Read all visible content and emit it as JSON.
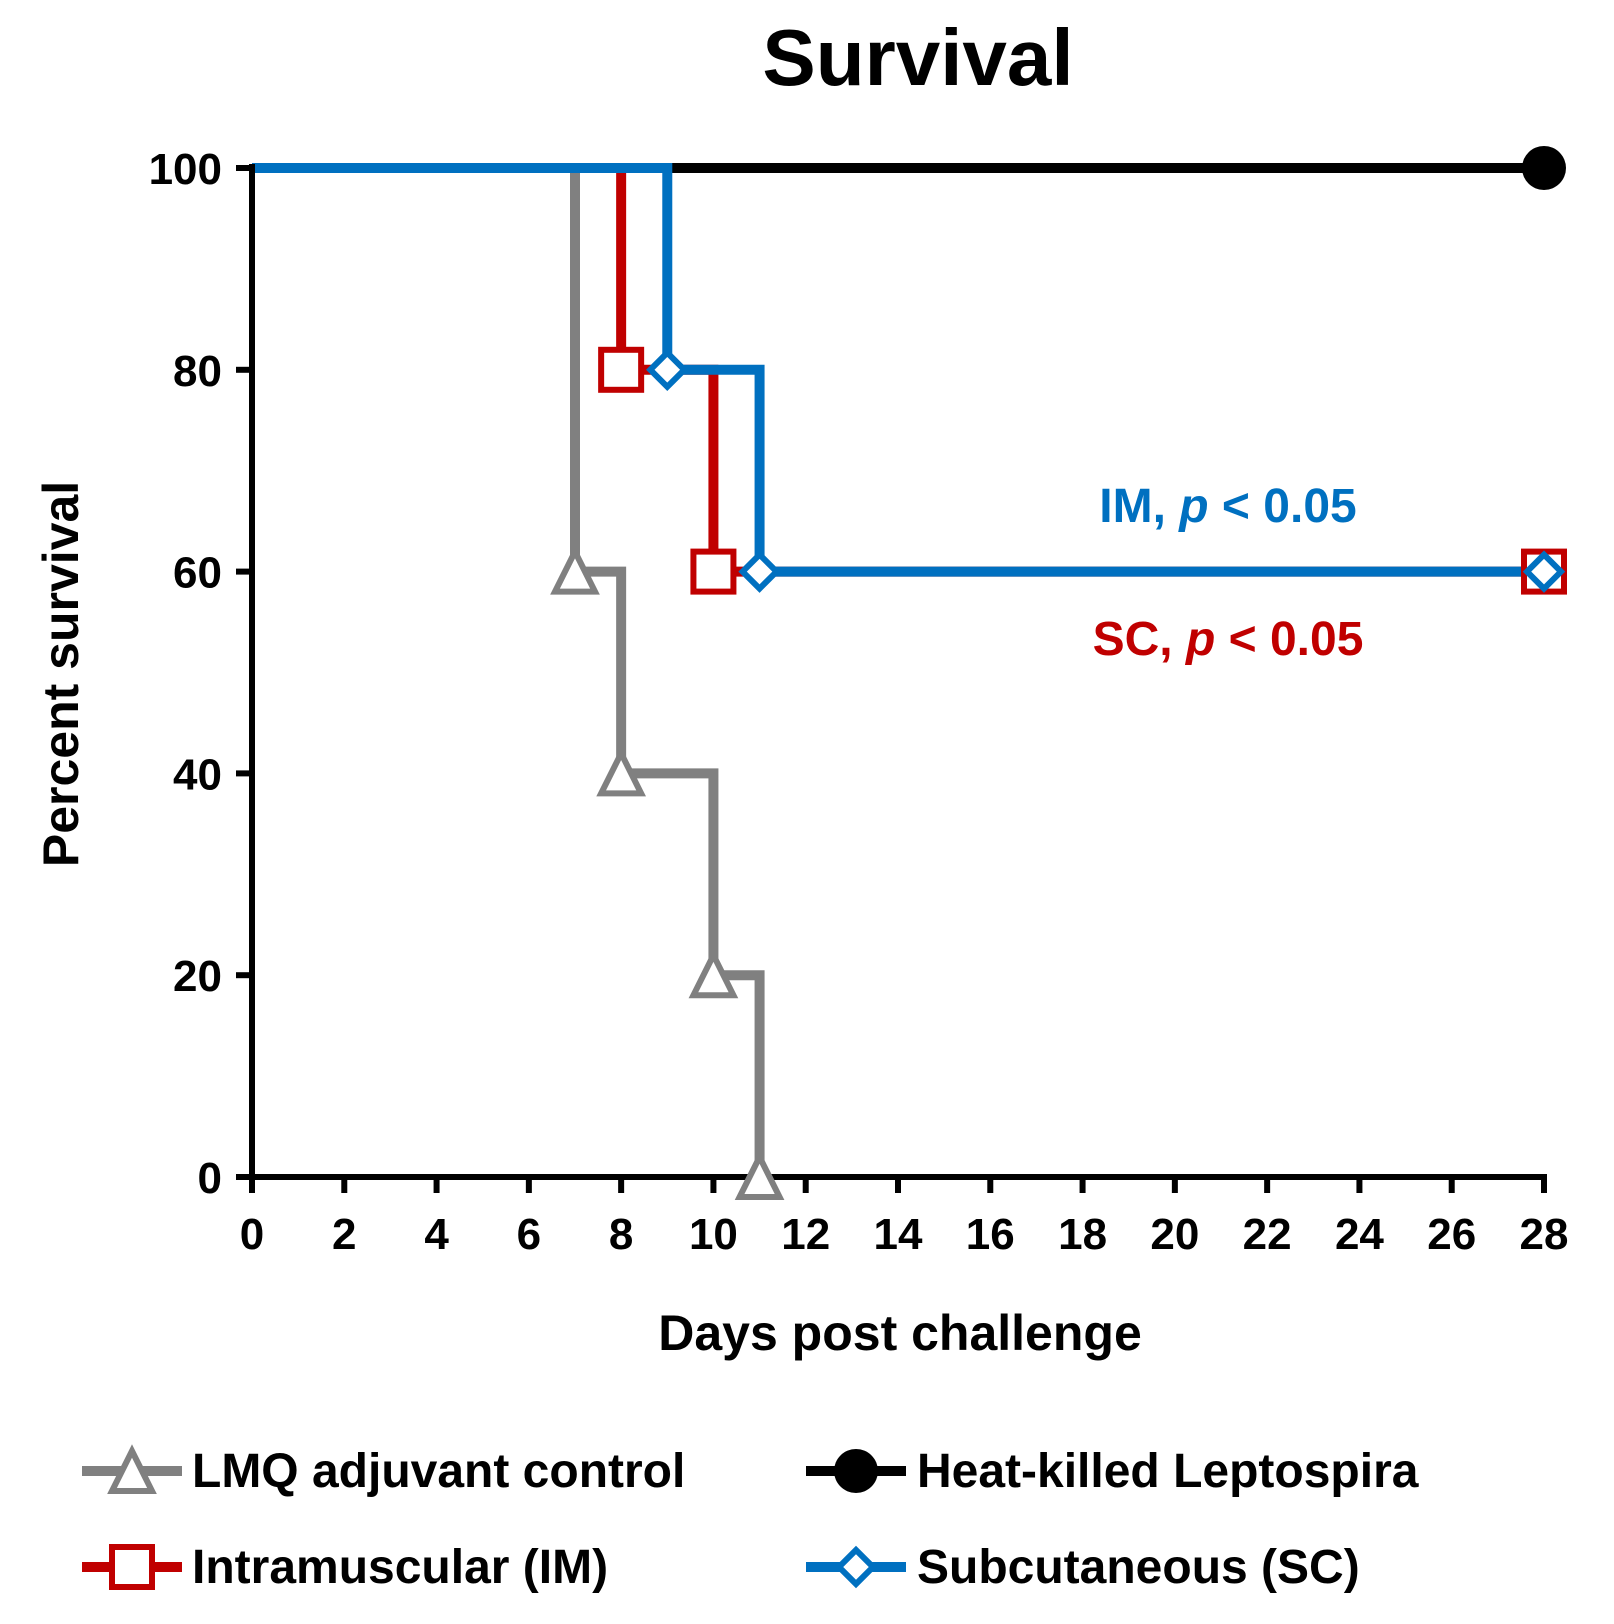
{
  "chart_data": {
    "type": "line",
    "subtype": "kaplan-meier survival step plot",
    "title": "Survival",
    "xlabel": "Days post challenge",
    "ylabel": "Percent survival",
    "xlim": [
      0,
      28
    ],
    "ylim": [
      0,
      100
    ],
    "x_ticks": [
      0,
      2,
      4,
      6,
      8,
      10,
      12,
      14,
      16,
      18,
      20,
      22,
      24,
      26,
      28
    ],
    "y_ticks": [
      0,
      20,
      40,
      60,
      80,
      100
    ],
    "grid": false,
    "legend_position": "bottom",
    "series": [
      {
        "name": "LMQ adjuvant control",
        "color": "#808080",
        "marker": "open-triangle",
        "x": [
          0,
          7,
          8,
          10,
          11
        ],
        "y": [
          100,
          60,
          40,
          20,
          0
        ]
      },
      {
        "name": "Heat-killed Leptospira",
        "color": "#000000",
        "marker": "filled-circle",
        "x": [
          0,
          28
        ],
        "y": [
          100,
          100
        ]
      },
      {
        "name": "Intramuscular (IM)",
        "color": "#c00000",
        "marker": "open-square",
        "x": [
          0,
          8,
          10,
          28
        ],
        "y": [
          100,
          80,
          60,
          60
        ]
      },
      {
        "name": "Subcutaneous (SC)",
        "color": "#0070c0",
        "marker": "open-diamond",
        "x": [
          0,
          9,
          11,
          28
        ],
        "y": [
          100,
          80,
          60,
          60
        ]
      }
    ],
    "annotations": [
      {
        "prefix": "IM, ",
        "italic": "p",
        "suffix": " < 0.05",
        "color": "#0070c0"
      },
      {
        "prefix": "SC, ",
        "italic": "p",
        "suffix": " < 0.05",
        "color": "#c00000"
      }
    ]
  }
}
